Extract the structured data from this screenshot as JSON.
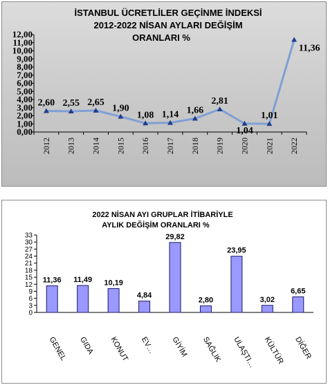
{
  "chart_data": [
    {
      "type": "line",
      "title_lines": [
        "İSTANBUL ÜCRETLİLER GEÇİNME İNDEKSİ",
        "2012-2022 NİSAN AYLARI DEĞİŞİM",
        "ORANLARI %"
      ],
      "categories": [
        "2012",
        "2013",
        "2014",
        "2015",
        "2016",
        "2017",
        "2018",
        "2019",
        "2020",
        "2021",
        "2022"
      ],
      "values": [
        2.6,
        2.55,
        2.65,
        1.9,
        1.08,
        1.14,
        1.66,
        2.81,
        1.04,
        1.01,
        11.36
      ],
      "data_labels": [
        "2,60",
        "2,55",
        "2,65",
        "1,90",
        "1,08",
        "1,14",
        "1,66",
        "2,81",
        "1,04",
        "1,01",
        "11,36"
      ],
      "ylim": [
        0,
        12
      ],
      "yticks": [
        0,
        1,
        2,
        3,
        4,
        5,
        6,
        7,
        8,
        9,
        10,
        11,
        12
      ],
      "ytick_labels": [
        "0,00",
        "1,00",
        "2,00",
        "3,00",
        "4,00",
        "5,00",
        "6,00",
        "7,00",
        "8,00",
        "9,00",
        "10,00",
        "11,00",
        "12,00"
      ],
      "grid": false,
      "line_color": "#7f9fd4",
      "marker_color": "#1f3d8a"
    },
    {
      "type": "bar",
      "title_lines": [
        "2022 NİSAN  AYI  GRUPLAR İTİBARİYLE",
        "AYLIK DEĞİŞİM  ORANLARI  %"
      ],
      "categories": [
        "GENEL",
        "GIDA",
        "KONUT",
        "EV…",
        "GİYİM",
        "SAĞLIK",
        "ULAŞTI…",
        "KÜLTÜR",
        "DİĞER"
      ],
      "values": [
        11.36,
        11.49,
        10.19,
        4.84,
        29.82,
        2.8,
        23.95,
        3.02,
        6.65
      ],
      "data_labels": [
        "11,36",
        "11,49",
        "10,19",
        "4,84",
        "29,82",
        "2,80",
        "23,95",
        "3,02",
        "6,65"
      ],
      "ylim": [
        0,
        33
      ],
      "yticks": [
        0,
        3,
        6,
        9,
        12,
        15,
        18,
        21,
        24,
        27,
        30,
        33
      ],
      "ytick_labels": [
        "0",
        "3",
        "6",
        "9",
        "12",
        "15",
        "18",
        "21",
        "24",
        "27",
        "30",
        "33"
      ],
      "grid": false,
      "bar_color": "#9999ff",
      "bar_edge": "#1a1a66"
    }
  ]
}
